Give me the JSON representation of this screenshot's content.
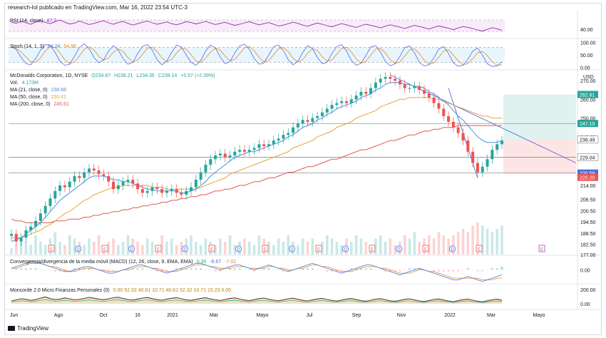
{
  "attribution": "research-lol publicado en TradingView.com, Mar 16, 2022 23:54 UTC-3",
  "footer_logo": "TradingView",
  "currency": "USD",
  "colors": {
    "up": "#26a69a",
    "down": "#ef5350",
    "ma21": "#4a90d9",
    "ma50": "#e8a33d",
    "ma200": "#e05a4e",
    "rsi": "#9c27b0",
    "stoch_k": "#4a6fdb",
    "stoch_d": "#e08a2c"
  },
  "legends": {
    "rsi": {
      "text": "RSI (14, close)",
      "value": "47.7"
    },
    "stoch": {
      "text": "Stoch (14, 1, 3)",
      "k": "64.24",
      "d": "54.98"
    },
    "main": {
      "title": "McDonalds Corporation, 1D, NYSE",
      "o": "O234.87",
      "h": "H238.21",
      "l": "L234.36",
      "c": "C238.14",
      "chg": "+5.57 (+2.39%)"
    },
    "vol": {
      "text": "Vol.",
      "value": "4.173M"
    },
    "ma21": {
      "text": "MA (21, close, 0)",
      "value": "238.68"
    },
    "ma50": {
      "text": "MA (50, close, 0)",
      "value": "250.41"
    },
    "ma200": {
      "text": "MA (200, close, 0)",
      "value": "245.61"
    },
    "macd": {
      "text": "Convergencia/divergencia de la media móvil (MACD) (12, 26, close, 9, EMA, EMA)",
      "v1": "0.35",
      "v2": "-6.67",
      "v3": "-7.02"
    },
    "wave": {
      "text": "Moncorde 2.0 Micro Finanzas Personales (0)",
      "values": "0.00  52.32  40.61  10.71  40.61  52.32  10.71  15.23  0.00"
    }
  },
  "chart_data": [
    {
      "type": "line",
      "name": "RSI",
      "title": "RSI (14, close)",
      "yticks": [
        "40.00"
      ],
      "levels": [
        70,
        30
      ],
      "ylim": [
        15,
        85
      ],
      "values": [
        62,
        58,
        66,
        60,
        55,
        63,
        68,
        61,
        57,
        64,
        70,
        62,
        56,
        59,
        66,
        60,
        54,
        58,
        63,
        67,
        60,
        55,
        61,
        65,
        58,
        52,
        57,
        62,
        66,
        60,
        55,
        59,
        63,
        57,
        53,
        58,
        64,
        61,
        56,
        60,
        65,
        59,
        54,
        58,
        62,
        56,
        51,
        55,
        60,
        64,
        58,
        53,
        57,
        61,
        55,
        49,
        52,
        57,
        62,
        58,
        52,
        48,
        54,
        59,
        55,
        50,
        46,
        52,
        57,
        53,
        48,
        44,
        50,
        55,
        51,
        47,
        42,
        48,
        53,
        49,
        45,
        40,
        46,
        51,
        47,
        43,
        38,
        44,
        49,
        45,
        41,
        36,
        42,
        47,
        44,
        40,
        35,
        31,
        37,
        43,
        39,
        34,
        30,
        27,
        33,
        38,
        45,
        48
      ]
    },
    {
      "type": "line",
      "name": "Stoch",
      "title": "Stoch (14, 1, 3)",
      "yticks": [
        "100.00",
        "50.00",
        "0.00"
      ],
      "levels": [
        80,
        20
      ],
      "ylim": [
        -5,
        105
      ],
      "k": [
        85,
        72,
        40,
        15,
        10,
        35,
        70,
        92,
        88,
        60,
        25,
        8,
        12,
        45,
        80,
        95,
        75,
        40,
        18,
        30,
        65,
        88,
        70,
        35,
        12,
        20,
        55,
        85,
        92,
        70,
        30,
        10,
        25,
        60,
        90,
        82,
        50,
        20,
        8,
        28,
        66,
        90,
        78,
        42,
        15,
        22,
        58,
        86,
        94,
        72,
        35,
        12,
        18,
        50,
        84,
        90,
        68,
        30,
        10,
        24,
        60,
        88,
        76,
        40,
        14,
        20,
        56,
        84,
        92,
        66,
        28,
        8,
        16,
        48,
        82,
        88,
        62,
        24,
        6,
        14,
        44,
        80,
        86,
        58,
        20,
        5,
        10,
        38,
        74,
        84,
        56,
        18,
        4,
        8,
        32,
        66,
        78,
        48,
        14,
        3,
        6,
        22,
        48,
        64
      ],
      "d": [
        80,
        76,
        62,
        42,
        22,
        20,
        38,
        66,
        84,
        80,
        58,
        31,
        15,
        22,
        46,
        73,
        83,
        70,
        44,
        29,
        38,
        61,
        74,
        64,
        39,
        22,
        29,
        53,
        77,
        82,
        64,
        37,
        22,
        32,
        58,
        77,
        74,
        51,
        26,
        19,
        37,
        61,
        78,
        70,
        45,
        26,
        32,
        55,
        79,
        84,
        67,
        40,
        22,
        27,
        51,
        75,
        81,
        63,
        36,
        21,
        31,
        57,
        75,
        68,
        43,
        25,
        30,
        53,
        77,
        81,
        62,
        34,
        17,
        24,
        49,
        73,
        77,
        58,
        31,
        15,
        21,
        46,
        70,
        75,
        55,
        28,
        12,
        18,
        41,
        66,
        71,
        49,
        26,
        10,
        15,
        35,
        59,
        64,
        47,
        22,
        8,
        10,
        25,
        45
      ]
    },
    {
      "type": "candlestick",
      "name": "McDonalds Corporation",
      "title": "McDonalds Corporation, 1D, NYSE",
      "ylabel": "USD",
      "xticks": [
        "Jun",
        "Ago",
        "Oct",
        "16",
        "2021",
        "Mar",
        "Mayo",
        "Jul",
        "Sep",
        "Nov",
        "2022",
        "Mar",
        "Mayo"
      ],
      "yticks": [
        "270.00",
        "260.00",
        "250.00",
        "240.00",
        "214.00",
        "206.50",
        "200.50",
        "194.50",
        "188.50",
        "182.50",
        "177.00"
      ],
      "price_tags": [
        "262.61",
        "247.10",
        "238.49",
        "229.04",
        "220.59",
        "220.20"
      ],
      "ylim": [
        177,
        275
      ],
      "close": [
        188,
        184,
        186,
        190,
        192,
        195,
        199,
        203,
        207,
        211,
        214,
        213,
        216,
        219,
        218,
        221,
        223,
        222,
        220,
        219,
        216,
        212,
        214,
        216,
        217,
        215,
        212,
        210,
        211,
        213,
        212,
        210,
        211,
        212,
        210,
        209,
        211,
        213,
        217,
        221,
        225,
        228,
        230,
        231,
        229,
        230,
        232,
        233,
        232,
        233,
        234,
        236,
        235,
        236,
        238,
        239,
        241,
        242,
        245,
        247,
        249,
        248,
        250,
        251,
        253,
        255,
        257,
        258,
        259,
        258,
        260,
        262,
        264,
        263,
        266,
        269,
        271,
        272,
        271,
        270,
        268,
        266,
        266,
        267,
        265,
        263,
        261,
        258,
        255,
        251,
        248,
        245,
        242,
        238,
        232,
        226,
        221,
        224,
        228,
        233,
        236,
        238
      ],
      "events": [
        "E",
        "D",
        "E",
        "D",
        "E",
        "D",
        "E",
        "D",
        "E",
        "D",
        "E",
        "D",
        "E",
        "D",
        "E",
        "D",
        "E"
      ],
      "volume": [
        2,
        3,
        5,
        4,
        3,
        6,
        4,
        3,
        5,
        7,
        4,
        3,
        6,
        5,
        4,
        3,
        5,
        4,
        6,
        3,
        4,
        5,
        3,
        4,
        6,
        5,
        4,
        3,
        5,
        4,
        3,
        6,
        4,
        5,
        3,
        4,
        5,
        6,
        4,
        3,
        5,
        4,
        3,
        5,
        4,
        6,
        3,
        4,
        5,
        4,
        3,
        6,
        5,
        4,
        3,
        5,
        4,
        6,
        4,
        3,
        5,
        4,
        5,
        3,
        4,
        6,
        5,
        4,
        3,
        5,
        4,
        6,
        5,
        4,
        3,
        5,
        6,
        4,
        5,
        3,
        4,
        6,
        5,
        7,
        4,
        5,
        6,
        5,
        7,
        6,
        5,
        6,
        7,
        8,
        7,
        9,
        10,
        9,
        8,
        7,
        8,
        9
      ],
      "ma21": [
        184,
        185,
        186,
        188,
        190,
        192,
        194,
        197,
        200,
        203,
        206,
        208,
        210,
        212,
        214,
        216,
        218,
        219,
        219,
        219,
        218,
        217,
        217,
        216,
        216,
        215,
        214,
        213,
        212,
        212,
        211,
        211,
        211,
        211,
        211,
        210,
        210,
        211,
        212,
        214,
        216,
        219,
        221,
        223,
        225,
        227,
        229,
        230,
        231,
        232,
        232,
        233,
        234,
        235,
        236,
        237,
        238,
        240,
        241,
        243,
        245,
        246,
        247,
        249,
        250,
        252,
        253,
        255,
        256,
        257,
        258,
        259,
        261,
        262,
        263,
        265,
        266,
        268,
        269,
        269,
        269,
        268,
        268,
        267,
        267,
        266,
        264,
        263,
        261,
        259,
        257,
        254,
        251,
        249,
        246,
        243,
        240,
        238,
        237,
        237,
        237,
        238
      ],
      "ma50": [
        186,
        186,
        186,
        187,
        188,
        189,
        190,
        192,
        193,
        195,
        197,
        199,
        200,
        202,
        204,
        206,
        207,
        209,
        210,
        211,
        212,
        213,
        213,
        214,
        214,
        214,
        214,
        214,
        214,
        213,
        213,
        213,
        212,
        212,
        212,
        212,
        212,
        212,
        212,
        213,
        214,
        215,
        216,
        217,
        218,
        220,
        221,
        222,
        223,
        224,
        225,
        226,
        227,
        228,
        229,
        230,
        231,
        232,
        234,
        235,
        236,
        237,
        238,
        240,
        241,
        242,
        243,
        245,
        246,
        247,
        248,
        250,
        251,
        252,
        253,
        254,
        256,
        257,
        258,
        259,
        260,
        260,
        261,
        261,
        261,
        261,
        261,
        260,
        260,
        259,
        258,
        257,
        256,
        255,
        254,
        253,
        252,
        251,
        251,
        250,
        250,
        250
      ],
      "ma200": [
        196,
        195,
        195,
        194,
        194,
        194,
        194,
        194,
        194,
        195,
        195,
        195,
        196,
        196,
        196,
        197,
        197,
        198,
        198,
        199,
        199,
        200,
        200,
        201,
        201,
        202,
        202,
        203,
        203,
        204,
        204,
        205,
        205,
        206,
        206,
        207,
        207,
        208,
        208,
        209,
        209,
        210,
        211,
        211,
        212,
        212,
        213,
        214,
        214,
        215,
        216,
        216,
        217,
        218,
        218,
        219,
        220,
        221,
        221,
        222,
        223,
        224,
        224,
        225,
        226,
        227,
        228,
        228,
        229,
        230,
        231,
        232,
        233,
        233,
        234,
        235,
        236,
        237,
        238,
        238,
        239,
        240,
        241,
        241,
        242,
        243,
        243,
        244,
        244,
        245,
        245,
        245,
        246,
        246,
        246,
        246,
        246,
        246,
        246,
        246,
        246,
        246
      ]
    },
    {
      "type": "line",
      "name": "MACD",
      "title": "Convergencia/divergencia de la media móvil (MACD) (12, 26, close, 9, EMA, EMA)",
      "yticks": [
        "0.00"
      ],
      "ylim": [
        -8,
        8
      ],
      "macd": [
        1,
        2,
        3,
        4,
        5,
        5,
        4,
        3,
        2,
        1,
        0,
        -1,
        -1,
        0,
        1,
        2,
        2,
        1,
        0,
        -1,
        -2,
        -2,
        -1,
        0,
        1,
        2,
        3,
        3,
        2,
        1,
        0,
        -1,
        -2,
        -1,
        0,
        1,
        2,
        3,
        4,
        4,
        3,
        2,
        1,
        0,
        1,
        2,
        3,
        3,
        2,
        1,
        0,
        1,
        2,
        3,
        2,
        1,
        0,
        -1,
        0,
        1,
        2,
        3,
        4,
        3,
        2,
        1,
        0,
        -1,
        -2,
        -1,
        0,
        1,
        2,
        3,
        3,
        2,
        1,
        0,
        -1,
        -2,
        -3,
        -2,
        -1,
        0,
        1,
        0,
        -1,
        -2,
        -3,
        -4,
        -5,
        -6,
        -6,
        -5,
        -4,
        -5,
        -6,
        -7,
        -6,
        -5,
        -4,
        -3
      ],
      "signal": [
        1,
        1,
        2,
        3,
        4,
        4,
        4,
        3,
        2,
        2,
        1,
        0,
        -1,
        -1,
        0,
        1,
        1,
        1,
        0,
        0,
        -1,
        -1,
        -1,
        0,
        0,
        1,
        2,
        2,
        2,
        1,
        1,
        0,
        -1,
        -1,
        -1,
        0,
        1,
        2,
        3,
        3,
        3,
        2,
        2,
        1,
        1,
        1,
        2,
        2,
        2,
        1,
        1,
        1,
        1,
        2,
        2,
        1,
        1,
        0,
        0,
        1,
        1,
        2,
        3,
        3,
        2,
        2,
        1,
        0,
        -1,
        -1,
        -1,
        0,
        1,
        2,
        2,
        2,
        1,
        1,
        0,
        -1,
        -2,
        -2,
        -2,
        -1,
        0,
        0,
        -1,
        -1,
        -2,
        -3,
        -4,
        -5,
        -5,
        -5,
        -5,
        -5,
        -5,
        -6,
        -6,
        -6,
        -5,
        -5
      ]
    },
    {
      "type": "area",
      "name": "Moncorde 2.0",
      "title": "Moncorde 2.0 Micro Finanzas Personales (0)",
      "yticks": [
        "200.00",
        "0.00"
      ],
      "ylim": [
        -60,
        260
      ],
      "values": [
        40,
        55,
        70,
        62,
        48,
        58,
        80,
        95,
        72,
        60,
        66,
        82,
        70,
        55,
        62,
        75,
        90,
        78,
        64,
        58,
        70,
        85,
        92,
        74,
        60,
        52,
        66,
        80,
        88,
        72,
        58,
        50,
        64,
        78,
        86,
        70,
        56,
        48,
        62,
        76,
        84,
        68,
        54,
        46,
        60,
        74,
        82,
        66,
        52,
        44,
        58,
        72,
        80,
        64,
        50,
        42,
        56,
        70,
        78,
        62,
        48,
        40,
        54,
        68,
        76,
        60,
        46,
        38,
        52,
        66,
        74,
        58,
        44,
        36,
        50,
        64,
        72,
        56,
        42,
        34,
        48,
        62,
        70,
        54,
        40,
        32,
        46,
        60,
        68,
        52,
        38,
        30,
        44,
        58,
        66,
        50,
        36,
        28,
        42,
        56,
        64,
        48
      ]
    }
  ]
}
